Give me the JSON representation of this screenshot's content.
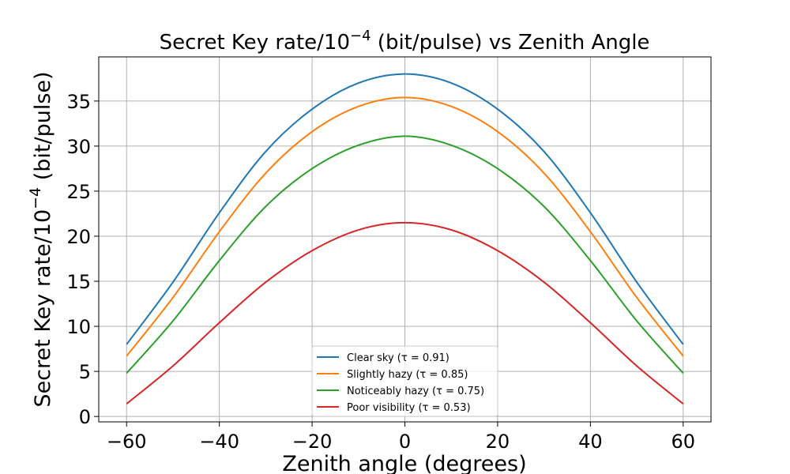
{
  "chart_data": {
    "type": "line",
    "title_main": "Secret Key rate/10",
    "title_exp": "−4",
    "title_rest": " (bit/pulse) vs Zenith Angle",
    "xlabel": "Zenith angle (degrees)",
    "ylabel_main": "Secret Key rate/10",
    "ylabel_exp": "−4",
    "ylabel_rest": " (bit/pulse)",
    "xlim": [
      -66,
      66
    ],
    "ylim": [
      -0.6,
      39.9
    ],
    "xticks": [
      -60,
      -40,
      -20,
      0,
      20,
      40,
      60
    ],
    "xtick_labels": [
      "−60",
      "−40",
      "−20",
      "0",
      "20",
      "40",
      "60"
    ],
    "yticks": [
      0,
      5,
      10,
      15,
      20,
      25,
      30,
      35
    ],
    "ytick_labels": [
      "0",
      "5",
      "10",
      "15",
      "20",
      "25",
      "30",
      "35"
    ],
    "grid": true,
    "legend_position": "bottom-center",
    "x": [
      -60,
      -50,
      -40,
      -30,
      -20,
      -10,
      0,
      10,
      20,
      30,
      40,
      50,
      60
    ],
    "series": [
      {
        "name": "Clear sky (τ = 0.91)",
        "color": "#1f77b4",
        "values": [
          8.0,
          14.9,
          22.6,
          29.4,
          34.1,
          37.0,
          38.0,
          37.0,
          34.1,
          29.4,
          22.6,
          14.9,
          8.0
        ]
      },
      {
        "name": "Slightly hazy (τ = 0.85)",
        "color": "#ff7f0e",
        "values": [
          6.7,
          13.2,
          20.5,
          27.0,
          31.6,
          34.4,
          35.4,
          34.4,
          31.6,
          27.0,
          20.5,
          13.2,
          6.7
        ]
      },
      {
        "name": "Noticeably hazy (τ = 0.75)",
        "color": "#2ca02c",
        "values": [
          4.8,
          10.6,
          17.3,
          23.3,
          27.5,
          30.1,
          31.1,
          30.1,
          27.5,
          23.3,
          17.3,
          10.6,
          4.8
        ]
      },
      {
        "name": "Poor visibility (τ = 0.53)",
        "color": "#d62728",
        "values": [
          1.4,
          5.6,
          10.4,
          14.9,
          18.4,
          20.7,
          21.5,
          20.7,
          18.4,
          14.9,
          10.4,
          5.6,
          1.4
        ]
      }
    ]
  }
}
